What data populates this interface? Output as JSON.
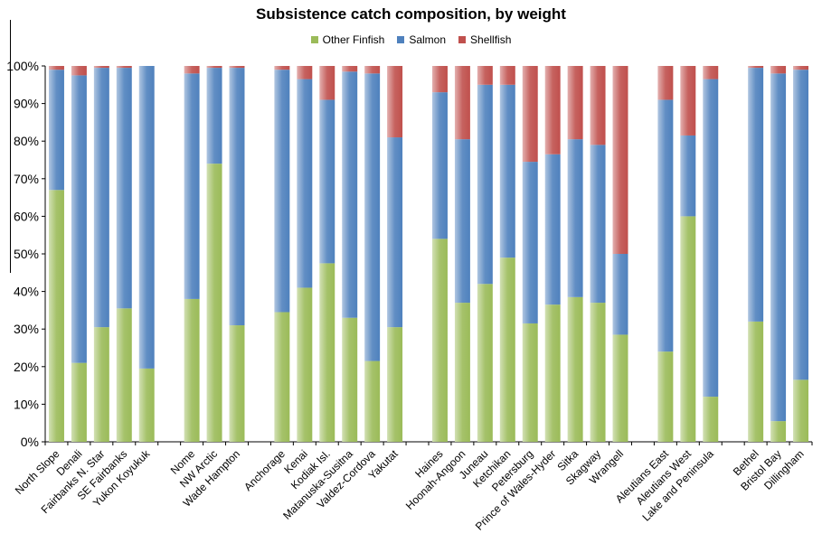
{
  "chart_data": {
    "type": "bar",
    "stacked": "percent",
    "title": "Subsistence catch composition, by weight",
    "xlabel": "",
    "ylabel": "",
    "ylim": [
      0,
      100
    ],
    "yticks": [
      "0%",
      "10%",
      "20%",
      "30%",
      "40%",
      "50%",
      "60%",
      "70%",
      "80%",
      "90%",
      "100%"
    ],
    "grid": false,
    "legend": "top-center",
    "groups": [
      [
        "North Slope",
        "Denali",
        "Fairbanks N. Star",
        "SE Fairbanks",
        "Yukon Koyukuk"
      ],
      [
        "Nome",
        "NW Arctic",
        "Wade Hampton"
      ],
      [
        "Anchorage",
        "Kenai",
        "Kodiak Isl.",
        "Matanuska-Susitna",
        "Valdez-Cordova",
        "Yakutat"
      ],
      [
        "Haines",
        "Hoonah-Angoon",
        "Juneau",
        "Ketchikan",
        "Petersburg",
        "Prince of Wales-Hyder",
        "Sitka",
        "Skagway",
        "Wrangell"
      ],
      [
        "Aleutians East",
        "Aleutians West",
        "Lake and Peninsula"
      ],
      [
        "Bethel",
        "Bristol Bay",
        "Dillingham"
      ]
    ],
    "series": [
      {
        "name": "Other Finfish",
        "color": "#9bbb59",
        "values": [
          67,
          21,
          30.5,
          35.5,
          19.5,
          38,
          74,
          31,
          34.5,
          41,
          47.5,
          33,
          21.5,
          30.5,
          54,
          37,
          42,
          49,
          31.5,
          36.5,
          38.5,
          37,
          28.5,
          24,
          60,
          12,
          32,
          5.5,
          16.5
        ]
      },
      {
        "name": "Salmon",
        "color": "#4f81bd",
        "values": [
          32,
          76.5,
          69,
          64,
          80.5,
          60,
          25.5,
          68.5,
          64.5,
          55.5,
          43.5,
          65.5,
          76.5,
          50.5,
          39,
          43.5,
          53,
          46,
          43,
          40,
          42,
          42,
          21.5,
          67,
          21.5,
          84.5,
          67.5,
          92.5,
          82.5
        ]
      },
      {
        "name": "Shellfish",
        "color": "#c0504d",
        "values": [
          1,
          2.5,
          0.5,
          0.5,
          0,
          2,
          0.5,
          0.5,
          1,
          3.5,
          9,
          1.5,
          2,
          19,
          7,
          19.5,
          5,
          5,
          25.5,
          23.5,
          19.5,
          21,
          50,
          9,
          18.5,
          3.5,
          0.5,
          2,
          1
        ]
      }
    ]
  }
}
